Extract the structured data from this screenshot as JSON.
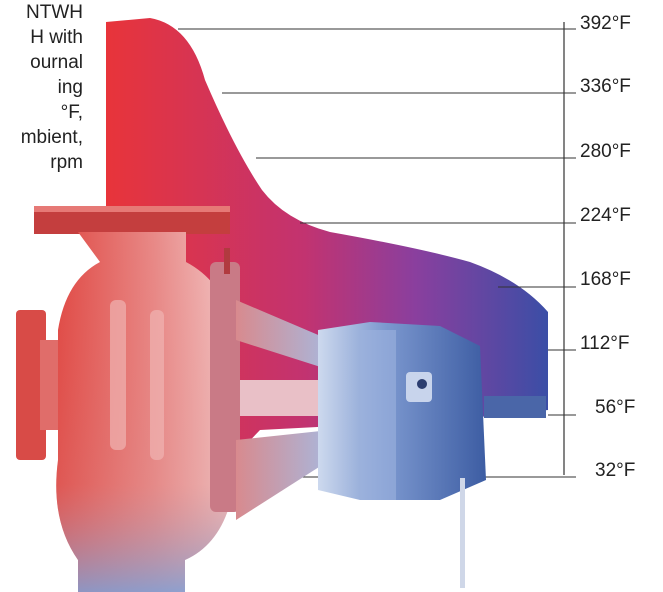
{
  "caption": {
    "lines": [
      "NTWH",
      "H with",
      "ournal",
      "ing",
      "°F,",
      "mbient,",
      "rpm"
    ]
  },
  "scale": {
    "labels": [
      "392°F",
      "336°F",
      "280°F",
      "224°F",
      "168°F",
      "112°F",
      "56°F",
      "32°F"
    ]
  },
  "colors": {
    "hot": "#e8343a",
    "mid": "#b0368a",
    "cool": "#3b4ea6",
    "pump_hot": "#e85a55",
    "pump_cool": "#5a7cc0",
    "bearing_housing": "#6f8fc8"
  },
  "icons": {
    "equipment": "centrifugal-pump-illustration"
  }
}
